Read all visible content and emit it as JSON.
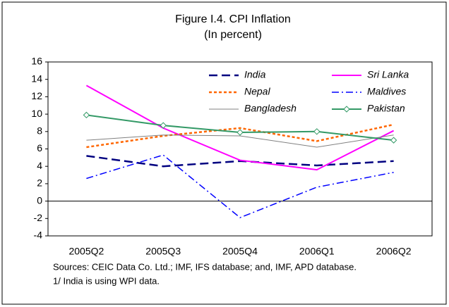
{
  "chart_data": {
    "type": "line",
    "title": "Figure I.4. CPI Inflation",
    "subtitle": "(In percent)",
    "categories": [
      "2005Q2",
      "2005Q3",
      "2005Q4",
      "2006Q1",
      "2006Q2"
    ],
    "series": [
      {
        "name": "India",
        "color": "#000080",
        "dash": "long-dash",
        "values": [
          5.2,
          4.0,
          4.6,
          4.1,
          4.6
        ]
      },
      {
        "name": "Sri Lanka",
        "color": "#ff00ff",
        "dash": "solid",
        "values": [
          13.3,
          8.4,
          4.7,
          3.6,
          8.1
        ]
      },
      {
        "name": "Nepal",
        "color": "#ff6600",
        "dash": "dotted",
        "values": [
          6.2,
          7.5,
          8.4,
          6.9,
          8.8
        ]
      },
      {
        "name": "Maldives",
        "color": "#0000ff",
        "dash": "dash-dot",
        "values": [
          2.6,
          5.3,
          -1.9,
          1.6,
          3.3
        ]
      },
      {
        "name": "Bangladesh",
        "color": "#808080",
        "dash": "thin",
        "values": [
          7.0,
          7.6,
          7.5,
          6.2,
          7.6
        ]
      },
      {
        "name": "Pakistan",
        "color": "#339966",
        "dash": "solid",
        "marker": "diamond",
        "values": [
          9.9,
          8.7,
          7.9,
          8.0,
          7.0
        ]
      }
    ],
    "ylim": [
      -4,
      16
    ],
    "yticks": [
      -4,
      -2,
      0,
      2,
      4,
      6,
      8,
      10,
      12,
      14,
      16
    ],
    "grid": false,
    "notes": [
      "Sources: CEIC Data Co. Ltd.; IMF, IFS database; and, IMF, APD database.",
      "1/ India is using WPI data."
    ]
  }
}
